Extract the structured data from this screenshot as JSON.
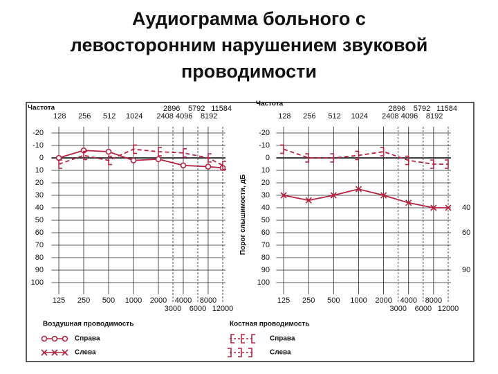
{
  "title_lines": [
    "Аудиограмма больного с",
    "левосторонним нарушением звуковой",
    "проводимости"
  ],
  "chart_data": [
    {
      "type": "line",
      "top_title": "Частота",
      "top_rows": [
        [
          2896,
          5792,
          11584
        ],
        [
          128,
          256,
          512,
          1024,
          2408,
          4096,
          8192
        ]
      ],
      "xscale": "log",
      "xlim": [
        110,
        12000
      ],
      "xticks": [
        125,
        250,
        500,
        1000,
        2000,
        4000,
        8000
      ],
      "xticks_minor": [
        3000,
        6000,
        12000
      ],
      "ylim": [
        -25,
        105
      ],
      "yticks": [
        -20,
        -10,
        0,
        10,
        20,
        30,
        40,
        50,
        60,
        70,
        80,
        90,
        100
      ],
      "grid": true,
      "series": [
        {
          "marker": "circle",
          "dash": false,
          "color": "#b5213f",
          "x": [
            125,
            250,
            500,
            1000,
            2000,
            4000,
            8000,
            12000
          ],
          "values": [
            0,
            -6,
            -5,
            2,
            1,
            6,
            7,
            8
          ]
        },
        {
          "marker": "bracket-left",
          "dash": true,
          "color": "#b5213f",
          "x": [
            125,
            250,
            500,
            1000,
            2000,
            4000,
            8000,
            12000
          ],
          "values": [
            5,
            -2,
            2,
            -7,
            -5,
            -4,
            0,
            6
          ]
        }
      ]
    },
    {
      "type": "line",
      "top_title": "Частота",
      "top_rows": [
        [
          2896,
          5792,
          11584
        ],
        [
          128,
          256,
          512,
          1024,
          2408,
          4096,
          8192
        ]
      ],
      "xscale": "log",
      "xlim": [
        110,
        12000
      ],
      "xticks": [
        125,
        250,
        500,
        1000,
        2000,
        4000,
        8000
      ],
      "xticks_minor": [
        3000,
        6000,
        12000
      ],
      "ylim": [
        -25,
        105
      ],
      "yticks": [
        -20,
        -10,
        0,
        10,
        20,
        30,
        40,
        50,
        60,
        70,
        80,
        90,
        100
      ],
      "grid": true,
      "ylabel": "Порог слышимости, дБ",
      "y2lim": [
        -25,
        105
      ],
      "y2ticks": [
        40,
        60,
        90
      ],
      "series": [
        {
          "marker": "x",
          "dash": false,
          "color": "#b5213f",
          "x": [
            125,
            250,
            500,
            1000,
            2000,
            4000,
            8000,
            12000
          ],
          "values": [
            30,
            34,
            30,
            25,
            30,
            36,
            40,
            40
          ]
        },
        {
          "marker": "bracket-right",
          "dash": true,
          "color": "#b5213f",
          "x": [
            125,
            250,
            500,
            1000,
            2000,
            4000,
            8000,
            12000
          ],
          "values": [
            -7,
            0,
            0,
            -2,
            -5,
            2,
            5,
            5
          ]
        }
      ]
    }
  ],
  "legend": {
    "air": {
      "title": "Воздушная проводимость",
      "items": [
        {
          "label": "Справа",
          "marker": "circle"
        },
        {
          "label": "Слева",
          "marker": "x"
        }
      ]
    },
    "bone": {
      "title": "Костная проводимость",
      "items": [
        {
          "label": "Справа",
          "marker": "bracket-left"
        },
        {
          "label": "Слева",
          "marker": "bracket-right"
        }
      ]
    }
  }
}
